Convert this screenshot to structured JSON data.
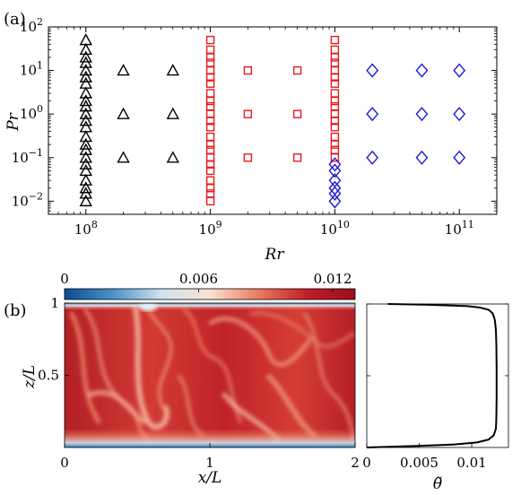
{
  "chart_data": [
    {
      "panel_label": "(a)",
      "type": "scatter",
      "xlabel": "Rr",
      "ylabel": "Pr",
      "xscale": "log",
      "yscale": "log",
      "xlim": [
        50000000,
        200000000000
      ],
      "ylim": [
        0.005,
        100
      ],
      "grid": false,
      "x_ticks": [
        {
          "value": 100000000,
          "base": "10",
          "exp": "8"
        },
        {
          "value": 1000000000,
          "base": "10",
          "exp": "9"
        },
        {
          "value": 10000000000,
          "base": "10",
          "exp": "10"
        },
        {
          "value": 100000000000,
          "base": "10",
          "exp": "11"
        }
      ],
      "y_ticks": [
        {
          "value": 0.01,
          "base": "10",
          "exp": "−2"
        },
        {
          "value": 0.1,
          "base": "10",
          "exp": "−1"
        },
        {
          "value": 1,
          "base": "10",
          "exp": "0"
        },
        {
          "value": 10,
          "base": "10",
          "exp": "1"
        },
        {
          "value": 100,
          "base": "10",
          "exp": "2"
        }
      ],
      "series": [
        {
          "marker": "triangle",
          "color": "#000000",
          "points": [
            {
              "x": 100000000,
              "y": 0.01
            },
            {
              "x": 100000000,
              "y": 0.015
            },
            {
              "x": 100000000,
              "y": 0.02
            },
            {
              "x": 100000000,
              "y": 0.03
            },
            {
              "x": 100000000,
              "y": 0.05
            },
            {
              "x": 100000000,
              "y": 0.07
            },
            {
              "x": 100000000,
              "y": 0.1
            },
            {
              "x": 100000000,
              "y": 0.15
            },
            {
              "x": 100000000,
              "y": 0.2
            },
            {
              "x": 100000000,
              "y": 0.3
            },
            {
              "x": 100000000,
              "y": 0.5
            },
            {
              "x": 100000000,
              "y": 0.7
            },
            {
              "x": 100000000,
              "y": 1
            },
            {
              "x": 100000000,
              "y": 1.5
            },
            {
              "x": 100000000,
              "y": 2
            },
            {
              "x": 100000000,
              "y": 3
            },
            {
              "x": 100000000,
              "y": 5
            },
            {
              "x": 100000000,
              "y": 7
            },
            {
              "x": 100000000,
              "y": 10
            },
            {
              "x": 100000000,
              "y": 15
            },
            {
              "x": 100000000,
              "y": 20
            },
            {
              "x": 100000000,
              "y": 30
            },
            {
              "x": 100000000,
              "y": 50
            },
            {
              "x": 200000000,
              "y": 0.1
            },
            {
              "x": 200000000,
              "y": 1
            },
            {
              "x": 200000000,
              "y": 10
            },
            {
              "x": 500000000,
              "y": 0.1
            },
            {
              "x": 500000000,
              "y": 1
            },
            {
              "x": 500000000,
              "y": 10
            }
          ]
        },
        {
          "marker": "square",
          "color": "#e8191b",
          "points": [
            {
              "x": 1000000000,
              "y": 0.01
            },
            {
              "x": 1000000000,
              "y": 0.015
            },
            {
              "x": 1000000000,
              "y": 0.02
            },
            {
              "x": 1000000000,
              "y": 0.03
            },
            {
              "x": 1000000000,
              "y": 0.05
            },
            {
              "x": 1000000000,
              "y": 0.07
            },
            {
              "x": 1000000000,
              "y": 0.1
            },
            {
              "x": 1000000000,
              "y": 0.15
            },
            {
              "x": 1000000000,
              "y": 0.2
            },
            {
              "x": 1000000000,
              "y": 0.3
            },
            {
              "x": 1000000000,
              "y": 0.5
            },
            {
              "x": 1000000000,
              "y": 0.7
            },
            {
              "x": 1000000000,
              "y": 1
            },
            {
              "x": 1000000000,
              "y": 1.5
            },
            {
              "x": 1000000000,
              "y": 2
            },
            {
              "x": 1000000000,
              "y": 3
            },
            {
              "x": 1000000000,
              "y": 5
            },
            {
              "x": 1000000000,
              "y": 7
            },
            {
              "x": 1000000000,
              "y": 10
            },
            {
              "x": 1000000000,
              "y": 15
            },
            {
              "x": 1000000000,
              "y": 20
            },
            {
              "x": 1000000000,
              "y": 30
            },
            {
              "x": 1000000000,
              "y": 50
            },
            {
              "x": 2000000000,
              "y": 0.1
            },
            {
              "x": 2000000000,
              "y": 1
            },
            {
              "x": 2000000000,
              "y": 10
            },
            {
              "x": 5000000000,
              "y": 0.1
            },
            {
              "x": 5000000000,
              "y": 1
            },
            {
              "x": 5000000000,
              "y": 10
            },
            {
              "x": 10000000000,
              "y": 0.1
            },
            {
              "x": 10000000000,
              "y": 0.15
            },
            {
              "x": 10000000000,
              "y": 0.2
            },
            {
              "x": 10000000000,
              "y": 0.3
            },
            {
              "x": 10000000000,
              "y": 0.5
            },
            {
              "x": 10000000000,
              "y": 0.7
            },
            {
              "x": 10000000000,
              "y": 1
            },
            {
              "x": 10000000000,
              "y": 1.5
            },
            {
              "x": 10000000000,
              "y": 2
            },
            {
              "x": 10000000000,
              "y": 3
            },
            {
              "x": 10000000000,
              "y": 5
            },
            {
              "x": 10000000000,
              "y": 7
            },
            {
              "x": 10000000000,
              "y": 10
            },
            {
              "x": 10000000000,
              "y": 15
            },
            {
              "x": 10000000000,
              "y": 20
            },
            {
              "x": 10000000000,
              "y": 30
            },
            {
              "x": 10000000000,
              "y": 50
            }
          ]
        },
        {
          "marker": "diamond",
          "color": "#1a1ad6",
          "points": [
            {
              "x": 10000000000,
              "y": 0.01
            },
            {
              "x": 10000000000,
              "y": 0.015
            },
            {
              "x": 10000000000,
              "y": 0.02
            },
            {
              "x": 10000000000,
              "y": 0.03
            },
            {
              "x": 10000000000,
              "y": 0.05
            },
            {
              "x": 10000000000,
              "y": 0.07
            },
            {
              "x": 20000000000,
              "y": 0.1
            },
            {
              "x": 20000000000,
              "y": 1
            },
            {
              "x": 20000000000,
              "y": 10
            },
            {
              "x": 50000000000,
              "y": 0.1
            },
            {
              "x": 50000000000,
              "y": 1
            },
            {
              "x": 50000000000,
              "y": 10
            },
            {
              "x": 100000000000,
              "y": 0.1
            },
            {
              "x": 100000000000,
              "y": 1
            },
            {
              "x": 100000000000,
              "y": 10
            }
          ]
        }
      ]
    },
    {
      "panel_label": "(b)",
      "type": "heatmap",
      "xlabel": "x/L",
      "ylabel": "z/L",
      "xlim": [
        0,
        2
      ],
      "ylim": [
        0,
        1
      ],
      "x_tick_labels": [
        "0",
        "1",
        "2"
      ],
      "y_tick_labels": [
        "0.5",
        "1"
      ],
      "colorbar": {
        "range": [
          0,
          0.013
        ],
        "tick_labels": [
          "0",
          "0.006",
          "0.012"
        ],
        "colors": [
          "#0a4a94",
          "#4a94c8",
          "#cfe3f0",
          "#f9e2d4",
          "#ec7a5e",
          "#c21f27",
          "#9c0c1e"
        ]
      }
    },
    {
      "type": "line",
      "xlabel": "θ̃",
      "xlim": [
        0,
        0.0135
      ],
      "ylim": [
        0,
        1
      ],
      "x_tick_labels": [
        "0",
        "0.005",
        "0.01"
      ],
      "line_color": "#000000",
      "x": [
        0.0,
        0.0045,
        0.0082,
        0.0105,
        0.0116,
        0.0121,
        0.0123,
        0.01235,
        0.01237,
        0.01237,
        0.01235,
        0.0123,
        0.0122,
        0.012,
        0.0116,
        0.0108,
        0.0096,
        0.0078,
        0.0055,
        0.002
      ],
      "y": [
        0.0,
        0.01,
        0.02,
        0.035,
        0.055,
        0.085,
        0.13,
        0.2,
        0.35,
        0.55,
        0.72,
        0.82,
        0.89,
        0.935,
        0.96,
        0.975,
        0.985,
        0.99,
        0.995,
        1.0
      ]
    }
  ]
}
